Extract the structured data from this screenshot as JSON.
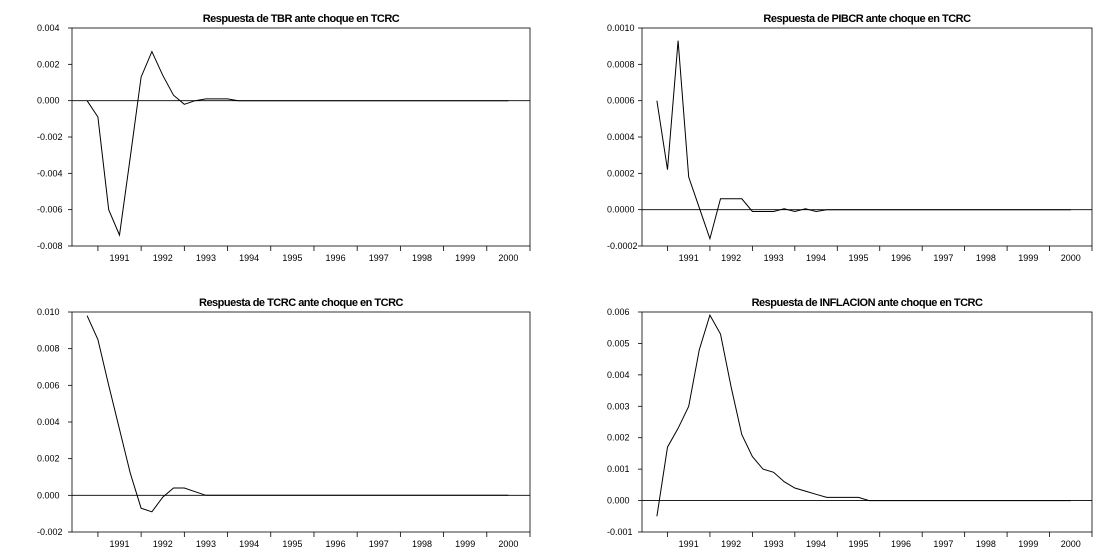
{
  "chart_data": [
    {
      "type": "line",
      "title": "Respuesta de TBR ante choque en TCRC",
      "xlabel": "",
      "ylabel": "",
      "x_ticks": [
        "1991",
        "1992",
        "1993",
        "1994",
        "1995",
        "1996",
        "1997",
        "1998",
        "1999",
        "2000"
      ],
      "x_start": 1990.75,
      "x_step": 0.25,
      "xlim": [
        1990.4,
        2001.0
      ],
      "ylim": [
        -0.008,
        0.004
      ],
      "y_ticks": [
        0.004,
        0.002,
        0.0,
        -0.002,
        -0.004,
        -0.006,
        -0.008
      ],
      "y_decimals": 3,
      "zero_line": true,
      "series": [
        {
          "values": [
            0.0,
            -0.0009,
            -0.006,
            -0.0074,
            -0.0031,
            0.0013,
            0.0027,
            0.0014,
            0.0003,
            -0.0002,
            0.0,
            0.0001,
            0.0001,
            0.0001,
            0.0,
            0.0,
            0.0,
            0.0,
            0.0,
            0.0,
            0.0,
            0.0,
            0.0,
            0.0,
            0.0,
            0.0,
            0.0,
            0.0,
            0.0,
            0.0,
            0.0,
            0.0,
            0.0,
            0.0,
            0.0,
            0.0,
            0.0,
            0.0,
            0.0,
            0.0
          ]
        }
      ]
    },
    {
      "type": "line",
      "title": "Respuesta de PIBCR ante choque en TCRC",
      "xlabel": "",
      "ylabel": "",
      "x_ticks": [
        "1991",
        "1992",
        "1993",
        "1994",
        "1995",
        "1996",
        "1997",
        "1998",
        "1999",
        "2000"
      ],
      "x_start": 1990.75,
      "x_step": 0.25,
      "xlim": [
        1990.4,
        2001.0
      ],
      "ylim": [
        -0.0002,
        0.001
      ],
      "y_ticks": [
        0.001,
        0.0008,
        0.0006,
        0.0004,
        0.0002,
        0.0,
        -0.0002
      ],
      "y_decimals": 4,
      "zero_line": true,
      "series": [
        {
          "values": [
            0.0006,
            0.00022,
            0.00093,
            0.00018,
            1e-05,
            -0.00016,
            6e-05,
            6e-05,
            6e-05,
            -1e-05,
            -1e-05,
            -1e-05,
            5e-06,
            -1e-05,
            5e-06,
            -1e-05,
            0.0,
            0.0,
            0.0,
            0.0,
            0.0,
            0.0,
            0.0,
            0.0,
            0.0,
            0.0,
            0.0,
            0.0,
            0.0,
            0.0,
            0.0,
            0.0,
            0.0,
            0.0,
            0.0,
            0.0,
            0.0,
            0.0,
            0.0,
            0.0
          ]
        }
      ]
    },
    {
      "type": "line",
      "title": "Respuesta de TCRC ante choque en TCRC",
      "xlabel": "",
      "ylabel": "",
      "x_ticks": [
        "1991",
        "1992",
        "1993",
        "1994",
        "1995",
        "1996",
        "1997",
        "1998",
        "1999",
        "2000"
      ],
      "x_start": 1990.75,
      "x_step": 0.25,
      "xlim": [
        1990.4,
        2001.0
      ],
      "ylim": [
        -0.002,
        0.01
      ],
      "y_ticks": [
        0.01,
        0.008,
        0.006,
        0.004,
        0.002,
        0.0,
        -0.002
      ],
      "y_decimals": 3,
      "zero_line": true,
      "series": [
        {
          "values": [
            0.0098,
            0.0085,
            0.006,
            0.0036,
            0.0012,
            -0.0007,
            -0.0009,
            -0.0001,
            0.0004,
            0.0004,
            0.0002,
            0.0,
            0.0,
            0.0,
            0.0,
            0.0,
            0.0,
            0.0,
            0.0,
            0.0,
            0.0,
            0.0,
            0.0,
            0.0,
            0.0,
            0.0,
            0.0,
            0.0,
            0.0,
            0.0,
            0.0,
            0.0,
            0.0,
            0.0,
            0.0,
            0.0,
            0.0,
            0.0,
            0.0,
            0.0
          ]
        }
      ]
    },
    {
      "type": "line",
      "title": "Respuesta de INFLACION ante choque en TCRC",
      "xlabel": "",
      "ylabel": "",
      "x_ticks": [
        "1991",
        "1992",
        "1993",
        "1994",
        "1995",
        "1996",
        "1997",
        "1998",
        "1999",
        "2000"
      ],
      "x_start": 1990.75,
      "x_step": 0.25,
      "xlim": [
        1990.4,
        2001.0
      ],
      "ylim": [
        -0.001,
        0.006
      ],
      "y_ticks": [
        0.006,
        0.005,
        0.004,
        0.003,
        0.002,
        0.001,
        0.0,
        -0.001
      ],
      "y_decimals": 3,
      "zero_line": true,
      "series": [
        {
          "values": [
            -0.0005,
            0.0017,
            0.0023,
            0.003,
            0.0048,
            0.0059,
            0.0053,
            0.0036,
            0.0021,
            0.0014,
            0.001,
            0.0009,
            0.0006,
            0.0004,
            0.0003,
            0.0002,
            0.0001,
            0.0001,
            0.0001,
            0.0001,
            0.0,
            0.0,
            0.0,
            0.0,
            0.0,
            0.0,
            0.0,
            0.0,
            0.0,
            0.0,
            0.0,
            0.0,
            0.0,
            0.0,
            0.0,
            0.0,
            0.0,
            0.0,
            0.0,
            0.0
          ]
        }
      ]
    }
  ]
}
